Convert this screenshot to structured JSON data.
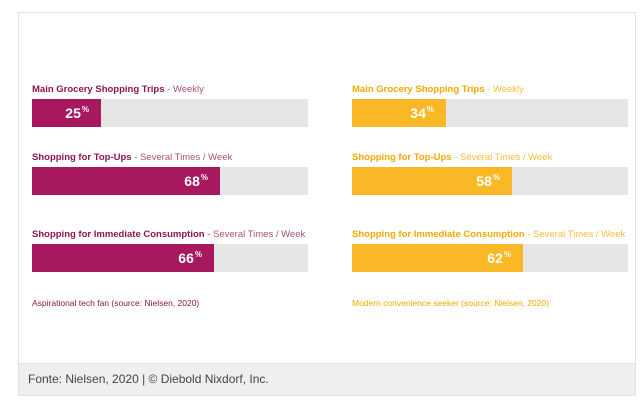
{
  "colors": {
    "left": "#a8185f",
    "right": "#fbb826",
    "left_text": "#8e1450",
    "right_text": "#f5a800",
    "track": "#e6e6e6"
  },
  "chart_data": [
    {
      "type": "bar",
      "orientation": "horizontal",
      "xlim": [
        0,
        100
      ],
      "unit": "%",
      "categories": [
        "Main Grocery Shopping Trips",
        "Shopping for Top-Ups",
        "Shopping for Immediate Consumption"
      ],
      "frequencies": [
        "Weekly",
        "Several Times / Week",
        "Several Times / Week"
      ],
      "values": [
        25,
        68,
        66
      ],
      "source_label": "Aspirational tech fan (source: Nielsen, 2020)"
    },
    {
      "type": "bar",
      "orientation": "horizontal",
      "xlim": [
        0,
        100
      ],
      "unit": "%",
      "categories": [
        "Main Grocery Shopping Trips",
        "Shopping for Top-Ups",
        "Shopping for Immediate Consumption"
      ],
      "frequencies": [
        "Weekly",
        "Several Times / Week",
        "Several Times / Week"
      ],
      "values": [
        34,
        58,
        62
      ],
      "source_label": "Modern convenience seeker (source: Nielsen, 2020)"
    }
  ],
  "caption": "Fonte: Nielsen, 2020 | © Diebold Nixdorf, Inc."
}
